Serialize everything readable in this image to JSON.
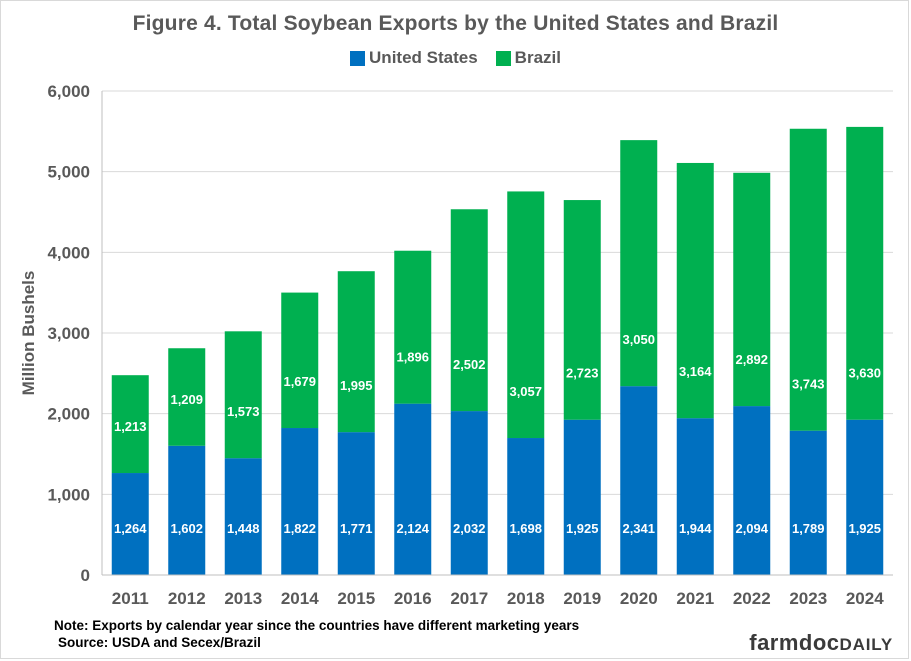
{
  "colors": {
    "us": "#0070c0",
    "brazil": "#00b050",
    "text": "#595959",
    "grid": "#d9d9d9"
  },
  "legend": {
    "us_label": "United States",
    "brazil_label": "Brazil"
  },
  "footnote": {
    "note": "Note: Exports by calendar year since the countries have different marketing years",
    "source": "Source: USDA and Secex/Brazil"
  },
  "brand": {
    "part1": "farmdoc",
    "part2": "DAILY"
  },
  "chart_data": {
    "type": "bar",
    "stacked": true,
    "title": "Figure  4. Total Soybean Exports by the United States and Brazil",
    "xlabel": "",
    "ylabel": "Million Bushels",
    "ylim": [
      0,
      6000
    ],
    "yticks": [
      0,
      1000,
      2000,
      3000,
      4000,
      5000,
      6000
    ],
    "ytick_labels": [
      "0",
      "1,000",
      "2,000",
      "3,000",
      "4,000",
      "5,000",
      "6,000"
    ],
    "grid": true,
    "legend_position": "top",
    "categories": [
      "2011",
      "2012",
      "2013",
      "2014",
      "2015",
      "2016",
      "2017",
      "2018",
      "2019",
      "2020",
      "2021",
      "2022",
      "2023",
      "2024"
    ],
    "series": [
      {
        "name": "United States",
        "values": [
          1264,
          1602,
          1448,
          1822,
          1771,
          2124,
          2032,
          1698,
          1925,
          2341,
          1944,
          2094,
          1789,
          1925
        ],
        "labels": [
          "1,264",
          "1,602",
          "1,448",
          "1,822",
          "1,771",
          "2,124",
          "2,032",
          "1,698",
          "1,925",
          "2,341",
          "1,944",
          "2,094",
          "1,789",
          "1,925"
        ]
      },
      {
        "name": "Brazil",
        "values": [
          1213,
          1209,
          1573,
          1679,
          1995,
          1896,
          2502,
          3057,
          2723,
          3050,
          3164,
          2892,
          3743,
          3630
        ],
        "labels": [
          "1,213",
          "1,209",
          "1,573",
          "1,679",
          "1,995",
          "1,896",
          "2,502",
          "3,057",
          "2,723",
          "3,050",
          "3,164",
          "2,892",
          "3,743",
          "3,630"
        ]
      }
    ]
  }
}
